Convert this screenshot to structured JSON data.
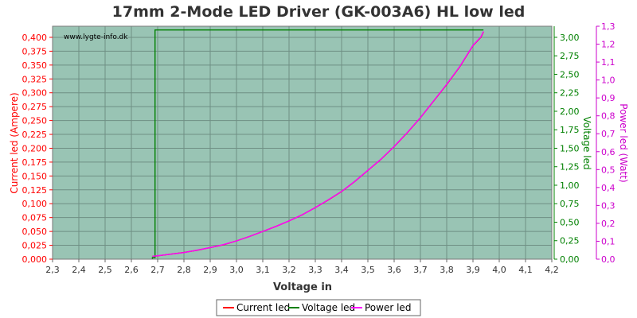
{
  "chart_data": {
    "type": "line",
    "title": "17mm 2-Mode LED Driver (GK-003A6) HL low led",
    "xlabel": "Voltage in",
    "ylabel_left": "Current led (Ampere)",
    "ylabel_right1": "Voltage led",
    "ylabel_right2": "Power led (Watt)",
    "watermark": "www.lygte-info.dk",
    "xlim": [
      2.3,
      4.2
    ],
    "x_ticks": [
      "2,3",
      "2,4",
      "2,5",
      "2,6",
      "2,7",
      "2,8",
      "2,9",
      "3,0",
      "3,1",
      "3,2",
      "3,3",
      "3,4",
      "3,5",
      "3,6",
      "3,7",
      "3,8",
      "3,9",
      "4,0",
      "4,1",
      "4,2"
    ],
    "ylim_left": [
      0,
      0.42
    ],
    "y_left_ticks": [
      "0,000",
      "0,025",
      "0,050",
      "0,075",
      "0,100",
      "0,125",
      "0,150",
      "0,175",
      "0,200",
      "0,225",
      "0,250",
      "0,275",
      "0,300",
      "0,325",
      "0,350",
      "0,375",
      "0,400"
    ],
    "ylim_right1": [
      0,
      3.15
    ],
    "y_right1_ticks": [
      "0,00",
      "0,25",
      "0,50",
      "0,75",
      "1,00",
      "1,25",
      "1,50",
      "1,75",
      "2,00",
      "2,25",
      "2,50",
      "2,75",
      "3,00"
    ],
    "ylim_right2": [
      0,
      1.3
    ],
    "y_right2_ticks": [
      "0,0",
      "0,1",
      "0,2",
      "0,3",
      "0,4",
      "0,5",
      "0,6",
      "0,7",
      "0,8",
      "0,9",
      "1,0",
      "1,1",
      "1,2",
      "1,3"
    ],
    "grid": true,
    "legend_position": "bottom",
    "colors": {
      "plot_bg": "#99c4b4",
      "grid": "#6f8f84",
      "current": "#ff0000",
      "voltage": "#008000",
      "power": "#ff00ff",
      "left_axis": "#ff0000",
      "right1_axis": "#008000",
      "right2_axis": "#cc00cc"
    },
    "series": [
      {
        "name": "Current led",
        "axis": "left",
        "x": [
          2.68,
          2.7,
          2.75,
          2.8,
          2.85,
          2.9,
          2.95,
          3.0,
          3.05,
          3.1,
          3.15,
          3.2,
          3.25,
          3.3,
          3.35,
          3.4,
          3.45,
          3.5,
          3.55,
          3.6,
          3.65,
          3.7,
          3.75,
          3.8,
          3.85,
          3.9,
          3.93,
          3.94
        ],
        "values": [
          0.005,
          0.006,
          0.009,
          0.012,
          0.016,
          0.021,
          0.026,
          0.033,
          0.041,
          0.05,
          0.059,
          0.069,
          0.08,
          0.093,
          0.107,
          0.122,
          0.14,
          0.16,
          0.18,
          0.203,
          0.228,
          0.255,
          0.285,
          0.315,
          0.347,
          0.385,
          0.4,
          0.41
        ]
      },
      {
        "name": "Voltage led",
        "axis": "right1",
        "x": [
          2.68,
          2.68,
          2.69,
          2.69,
          3.94
        ],
        "values": [
          0.0,
          0.02,
          0.02,
          3.1,
          3.1
        ]
      },
      {
        "name": "Power led",
        "axis": "right2",
        "x": [
          2.68,
          2.7,
          2.75,
          2.8,
          2.85,
          2.9,
          2.95,
          3.0,
          3.05,
          3.1,
          3.15,
          3.2,
          3.25,
          3.3,
          3.35,
          3.4,
          3.45,
          3.5,
          3.55,
          3.6,
          3.65,
          3.7,
          3.75,
          3.8,
          3.85,
          3.9,
          3.93,
          3.94
        ],
        "values": [
          0.016,
          0.019,
          0.028,
          0.037,
          0.05,
          0.065,
          0.081,
          0.102,
          0.127,
          0.155,
          0.183,
          0.214,
          0.248,
          0.288,
          0.332,
          0.378,
          0.434,
          0.496,
          0.558,
          0.629,
          0.707,
          0.79,
          0.883,
          0.976,
          1.076,
          1.193,
          1.24,
          1.271
        ]
      }
    ]
  }
}
